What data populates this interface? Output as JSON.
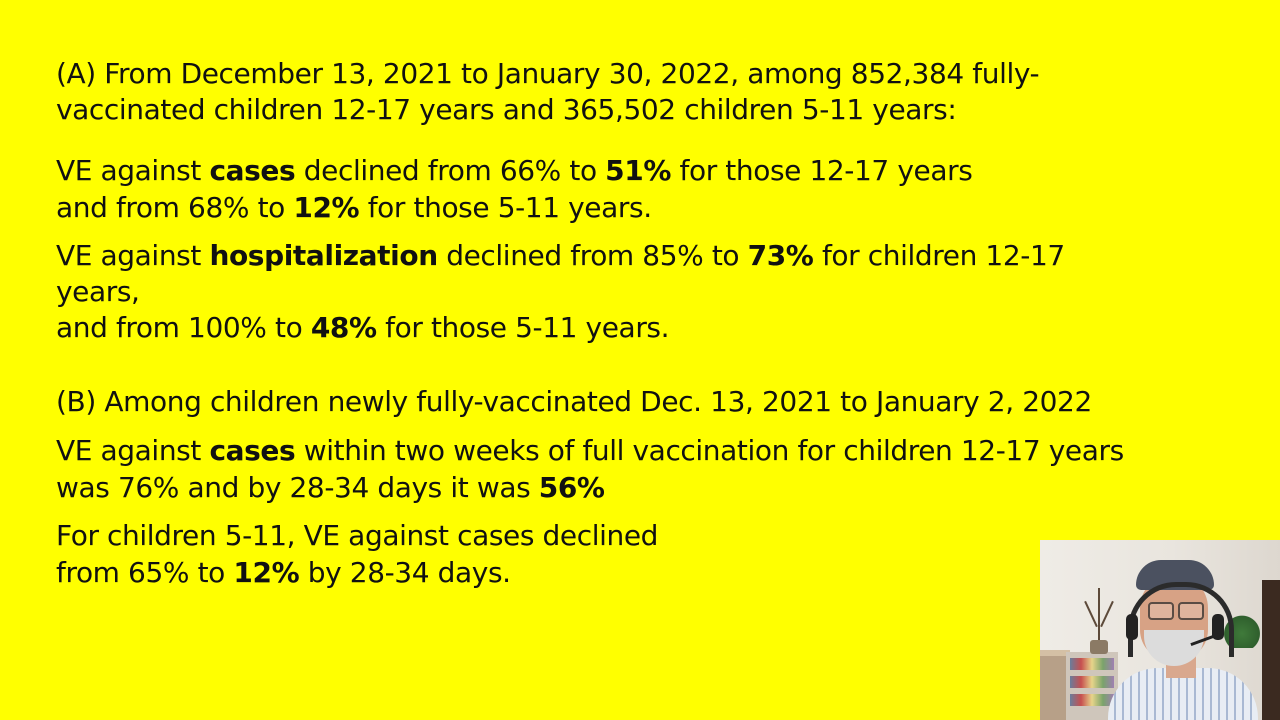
{
  "slide": {
    "a_line1": "(A) From December 13, 2021 to January 30, 2022, among 852,384 fully-",
    "a_line2": "vaccinated children 12-17 years and 365,502 children 5-11 years:",
    "cases_line1": {
      "p1": "VE against ",
      "b1": "cases",
      "p2": " declined from 66% to ",
      "b2": "51%",
      "p3": " for those 12-17 years"
    },
    "cases_line2": {
      "p1": "and from 68% to ",
      "b1": "12%",
      "p2": " for those 5-11 years."
    },
    "hosp_line1": {
      "p1": "VE against ",
      "b1": "hospitalization",
      "p2": " declined from 85% to ",
      "b2": "73%",
      "p3": " for children 12-17"
    },
    "hosp_line2": "years,",
    "hosp_line3": {
      "p1": "and from 100% to ",
      "b1": "48%",
      "p2": " for those 5-11 years."
    },
    "b_line1": "(B) Among children newly fully-vaccinated Dec. 13, 2021 to January 2, 2022",
    "b_cases_line1": {
      "p1": "VE against ",
      "b1": "cases",
      "p2": " within two weeks of full vaccination for children 12-17 years"
    },
    "b_cases_line2": {
      "p1": "was 76% and by 28-34 days it was ",
      "b1": "56%"
    },
    "b_kids_line1": "For children 5-11, VE against cases declined",
    "b_kids_line2": {
      "p1": "from 65% to ",
      "b1": "12%",
      "p2": " by 28-34 days."
    }
  },
  "colors": {
    "background": "#ffff00",
    "text": "#111111"
  },
  "webcam": {
    "icon": "presenter-webcam-video"
  }
}
